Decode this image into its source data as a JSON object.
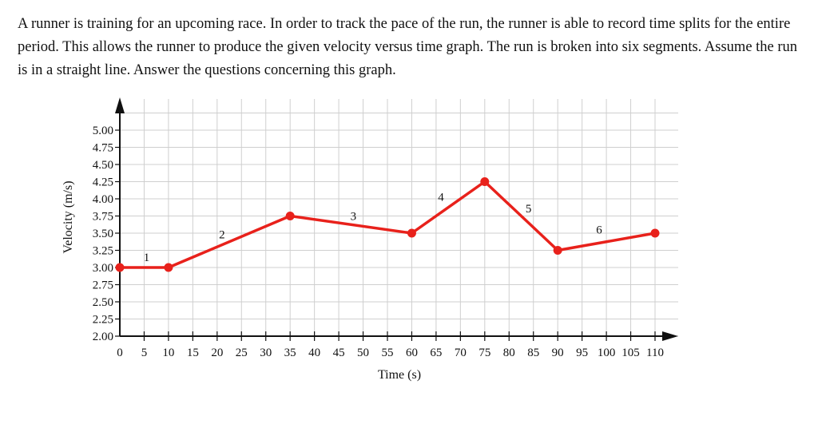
{
  "question": {
    "text": "A runner is training for an upcoming race. In order to track the pace of the run, the runner is able to record time splits for the entire period. This allows the runner to produce the given velocity versus time graph. The run is broken into six segments. Assume the run is in a straight line. Answer the questions concerning this graph."
  },
  "chart_data": {
    "type": "line",
    "title": "",
    "xlabel": "Time (s)",
    "ylabel": "Velocity (m/s)",
    "xlim": [
      0,
      110
    ],
    "ylim": [
      2.0,
      5.0
    ],
    "x_ticks": [
      0,
      5,
      10,
      15,
      20,
      25,
      30,
      35,
      40,
      45,
      50,
      55,
      60,
      65,
      70,
      75,
      80,
      85,
      90,
      95,
      100,
      105,
      110
    ],
    "y_ticks": [
      {
        "value": 2.0,
        "label": "2.00"
      },
      {
        "value": 2.25,
        "label": "2.25"
      },
      {
        "value": 2.5,
        "label": "2.50"
      },
      {
        "value": 2.75,
        "label": "2.75"
      },
      {
        "value": 3.0,
        "label": "3.00"
      },
      {
        "value": 3.25,
        "label": "3.25"
      },
      {
        "value": 3.5,
        "label": "3.50"
      },
      {
        "value": 3.75,
        "label": "3.75"
      },
      {
        "value": 4.0,
        "label": "4.00"
      },
      {
        "value": 4.25,
        "label": "4.25"
      },
      {
        "value": 4.5,
        "label": "4.50"
      },
      {
        "value": 4.75,
        "label": "4.75"
      },
      {
        "value": 5.0,
        "label": "5.00"
      }
    ],
    "grid": true,
    "series": [
      {
        "color": "#e8211b",
        "points": [
          {
            "x": 0,
            "y": 3.0
          },
          {
            "x": 10,
            "y": 3.0
          },
          {
            "x": 35,
            "y": 3.75
          },
          {
            "x": 60,
            "y": 3.5
          },
          {
            "x": 75,
            "y": 4.25
          },
          {
            "x": 90,
            "y": 3.25
          },
          {
            "x": 110,
            "y": 3.5
          }
        ]
      }
    ],
    "segment_labels": [
      {
        "text": "1",
        "x": 5.5,
        "y": 3.15
      },
      {
        "text": "2",
        "x": 21,
        "y": 3.48
      },
      {
        "text": "3",
        "x": 48,
        "y": 3.75
      },
      {
        "text": "4",
        "x": 66,
        "y": 4.03
      },
      {
        "text": "5",
        "x": 84,
        "y": 3.86
      },
      {
        "text": "6",
        "x": 98.5,
        "y": 3.55
      }
    ]
  }
}
